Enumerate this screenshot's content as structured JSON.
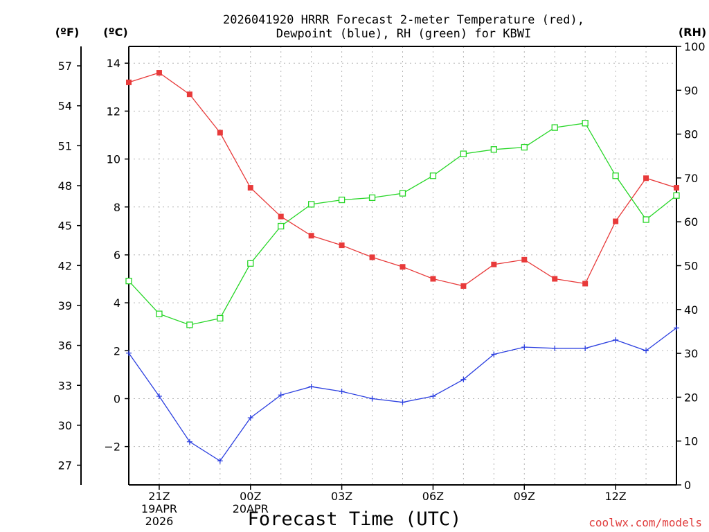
{
  "chart_data": {
    "type": "line",
    "title_line1": "2026041920 HRRR Forecast 2-meter Temperature (red),",
    "title_line2": "Dewpoint (blue), RH (green) for KBWI",
    "xlabel": "Forecast Time (UTC)",
    "credit": "coolwx.com/models",
    "units": {
      "f": "(ºF)",
      "c": "(ºC)",
      "rh": "(RH)"
    },
    "x_hours": [
      0,
      1,
      2,
      3,
      4,
      5,
      6,
      7,
      8,
      9,
      10,
      11,
      12,
      13,
      14,
      15,
      16,
      17,
      18
    ],
    "xlim": [
      0,
      18
    ],
    "x_ticks": [
      {
        "hour": 1,
        "lines": [
          "21Z",
          "19APR",
          "2026"
        ]
      },
      {
        "hour": 4,
        "lines": [
          "00Z",
          "20APR"
        ]
      },
      {
        "hour": 7,
        "lines": [
          "03Z"
        ]
      },
      {
        "hour": 10,
        "lines": [
          "06Z"
        ]
      },
      {
        "hour": 13,
        "lines": [
          "09Z"
        ]
      },
      {
        "hour": 16,
        "lines": [
          "12Z"
        ]
      }
    ],
    "ylim_c": [
      -3.6,
      14.7
    ],
    "c_ticks": [
      "−2",
      "0",
      "2",
      "4",
      "6",
      "8",
      "10",
      "12",
      "14"
    ],
    "f_ticks": [
      "27",
      "30",
      "33",
      "36",
      "39",
      "42",
      "45",
      "48",
      "51",
      "54",
      "57"
    ],
    "rh_ticks": [
      "0",
      "10",
      "20",
      "30",
      "40",
      "50",
      "60",
      "70",
      "80",
      "90",
      "100"
    ],
    "ylim_rh": [
      0,
      100
    ],
    "series": [
      {
        "name": "Temperature",
        "color": "#e83a3a",
        "marker": "filled-square",
        "axis": "c",
        "values": [
          13.2,
          13.6,
          12.7,
          11.1,
          8.8,
          7.6,
          6.8,
          6.4,
          5.9,
          5.5,
          5.0,
          4.7,
          5.6,
          5.8,
          5.0,
          4.8,
          7.4,
          9.2,
          8.8
        ]
      },
      {
        "name": "Dewpoint",
        "color": "#2b3fe0",
        "marker": "plus",
        "axis": "c",
        "values": [
          1.9,
          0.1,
          -1.8,
          -2.6,
          -0.8,
          0.15,
          0.5,
          0.3,
          0.0,
          -0.15,
          0.1,
          0.8,
          1.85,
          2.15,
          2.1,
          2.1,
          2.45,
          2.0,
          2.95
        ]
      },
      {
        "name": "RH",
        "color": "#26d626",
        "marker": "open-square",
        "axis": "rh",
        "values": [
          46.5,
          39.0,
          36.5,
          38.0,
          50.5,
          59.0,
          64.0,
          65.0,
          65.5,
          66.5,
          70.5,
          75.5,
          76.5,
          77.0,
          81.5,
          82.5,
          70.5,
          60.5,
          66.0
        ]
      }
    ]
  }
}
